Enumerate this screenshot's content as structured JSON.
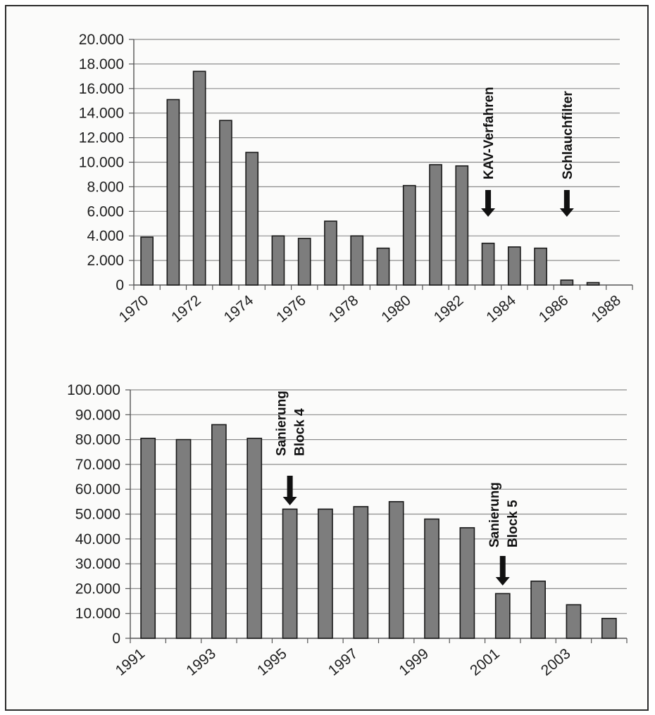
{
  "colors": {
    "bar_fill": "#7d7d7d",
    "bar_stroke": "#1a1a1a",
    "gridline": "#8c8c8c",
    "axis": "#555555",
    "arrow": "#111111",
    "text": "#1e1e1e"
  },
  "chart_data": [
    {
      "type": "bar",
      "title": "",
      "xlabel": "",
      "ylabel": "",
      "ylim": [
        0,
        20000
      ],
      "grid": true,
      "y_ticks": [
        "0",
        "2.000",
        "4.000",
        "6.000",
        "8.000",
        "10.000",
        "12.000",
        "14.000",
        "16.000",
        "18.000",
        "20.000"
      ],
      "x_tick_labels": [
        "1970",
        "1972",
        "1974",
        "1976",
        "1978",
        "1980",
        "1982",
        "1984",
        "1986",
        "1988"
      ],
      "categories": [
        "1970",
        "1971",
        "1972",
        "1973",
        "1974",
        "1975",
        "1976",
        "1977",
        "1978",
        "1979",
        "1980",
        "1981",
        "1982",
        "1983",
        "1984",
        "1985",
        "1986",
        "1987",
        "1988"
      ],
      "values": [
        3900,
        15100,
        17400,
        13400,
        10800,
        4000,
        3800,
        5200,
        4000,
        3000,
        8100,
        9800,
        9700,
        3400,
        3100,
        3000,
        400,
        200,
        0
      ],
      "annotations": [
        {
          "text": "KAV-Verfahren",
          "category": "1983",
          "arrow": true
        },
        {
          "text": "Schlauchfilter",
          "category": "1986",
          "arrow": true
        }
      ]
    },
    {
      "type": "bar",
      "title": "",
      "xlabel": "",
      "ylabel": "",
      "ylim": [
        0,
        100000
      ],
      "grid": true,
      "y_ticks": [
        "0",
        "10.000",
        "20.000",
        "30.000",
        "40.000",
        "50.000",
        "60.000",
        "70.000",
        "80.000",
        "90.000",
        "100.000"
      ],
      "x_tick_labels": [
        "1991",
        "1993",
        "1995",
        "1997",
        "1999",
        "2001",
        "2003"
      ],
      "categories": [
        "1991",
        "1992",
        "1993",
        "1994",
        "1995",
        "1996",
        "1997",
        "1998",
        "1999",
        "2000",
        "2001",
        "2002",
        "2003",
        "2004"
      ],
      "values": [
        80500,
        80000,
        86000,
        80500,
        52000,
        52000,
        53000,
        55000,
        48000,
        44500,
        18000,
        23000,
        13500,
        8000
      ],
      "annotations": [
        {
          "text": "Sanierung\nBlock 4",
          "category": "1995",
          "arrow": true
        },
        {
          "text": "Sanierung\nBlock 5",
          "category": "2001",
          "arrow": true
        }
      ]
    }
  ]
}
